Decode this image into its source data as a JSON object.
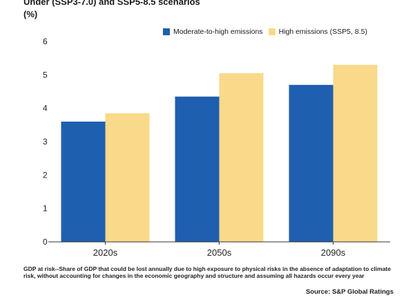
{
  "header": {
    "title": "Under (SSP3-7.0) and SSP5-8.5 scenarios",
    "unit": "(%)"
  },
  "chart_data": {
    "type": "bar",
    "categories": [
      "2020s",
      "2050s",
      "2090s"
    ],
    "series": [
      {
        "name": "Moderate-to-high emissions",
        "values": [
          3.6,
          4.35,
          4.7
        ],
        "color": "#1f5fb0"
      },
      {
        "name": "High emissions (SSP5, 8.5)",
        "values": [
          3.85,
          5.05,
          5.3
        ],
        "color": "#f9d98a"
      }
    ],
    "yticks": [
      0,
      1,
      2,
      3,
      4,
      5,
      6
    ],
    "ylim": [
      0,
      6
    ],
    "grid": false,
    "legend_position": "top-right"
  },
  "footer": {
    "note": "GDP at risk--Share of GDP that could be lost annually due to high exposure to physical risks in the absence of adaptation to climate risk, without accounting for changes in the economic geography and structure and assuming all hazards occur every year",
    "source": "Source: S&P Global Ratings"
  }
}
